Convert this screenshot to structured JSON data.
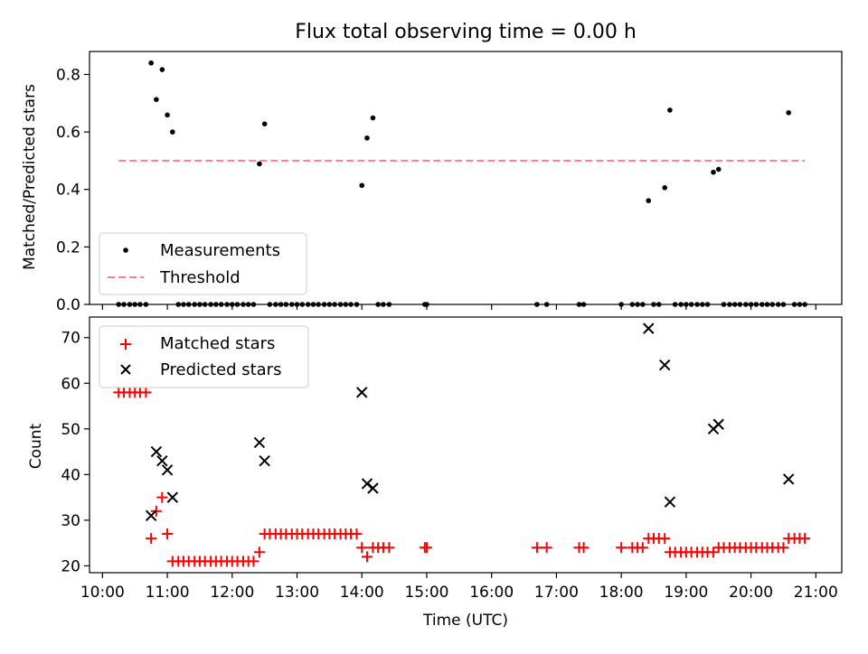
{
  "chart_data": [
    {
      "type": "scatter",
      "title": "Flux total observing time = 0.00 h",
      "ylabel": "Matched/Predicted stars",
      "xlabel": "",
      "xlim": [
        9.8,
        21.4
      ],
      "ylim": [
        0.0,
        0.88
      ],
      "yticks": [
        0.0,
        0.2,
        0.4,
        0.6,
        0.8
      ],
      "ytick_labels": [
        "0.0",
        "0.2",
        "0.4",
        "0.6",
        "0.8"
      ],
      "xticks": [
        10,
        11,
        12,
        13,
        14,
        15,
        16,
        17,
        18,
        19,
        20,
        21
      ],
      "grid": false,
      "legend_location": "lower-left",
      "legend": [
        "Measurements",
        "Threshold"
      ],
      "series": [
        {
          "name": "Measurements",
          "color": "#000000",
          "marker": "dot",
          "x": [
            10.75,
            10.83,
            10.92,
            11.0,
            11.08,
            12.42,
            12.5,
            14.0,
            14.08,
            14.17,
            18.42,
            18.67,
            18.75,
            19.42,
            19.5,
            20.58,
            10.25,
            10.33,
            10.42,
            10.5,
            10.58,
            10.67,
            11.17,
            11.25,
            11.33,
            11.42,
            11.5,
            11.58,
            11.67,
            11.75,
            11.83,
            11.92,
            12.0,
            12.08,
            12.17,
            12.25,
            12.33,
            12.58,
            12.67,
            12.75,
            12.83,
            12.92,
            13.0,
            13.08,
            13.17,
            13.25,
            13.33,
            13.42,
            13.5,
            13.58,
            13.67,
            13.75,
            13.83,
            13.92,
            14.25,
            14.33,
            14.42,
            14.97,
            15.0,
            16.7,
            16.85,
            17.35,
            17.42,
            18.0,
            18.17,
            18.25,
            18.33,
            18.5,
            18.58,
            18.83,
            18.92,
            19.0,
            19.08,
            19.17,
            19.25,
            19.33,
            19.58,
            19.67,
            19.75,
            19.83,
            19.92,
            20.0,
            20.08,
            20.17,
            20.25,
            20.33,
            20.42,
            20.5,
            20.67,
            20.75,
            20.83
          ],
          "y": [
            0.84,
            0.713,
            0.817,
            0.659,
            0.6,
            0.489,
            0.628,
            0.414,
            0.579,
            0.649,
            0.361,
            0.406,
            0.676,
            0.46,
            0.47,
            0.667,
            0,
            0,
            0,
            0,
            0,
            0,
            0,
            0,
            0,
            0,
            0,
            0,
            0,
            0,
            0,
            0,
            0,
            0,
            0,
            0,
            0,
            0,
            0,
            0,
            0,
            0,
            0,
            0,
            0,
            0,
            0,
            0,
            0,
            0,
            0,
            0,
            0,
            0,
            0,
            0,
            0,
            0,
            0,
            0,
            0,
            0,
            0,
            0,
            0,
            0,
            0,
            0,
            0,
            0,
            0,
            0,
            0,
            0,
            0,
            0,
            0,
            0,
            0,
            0,
            0,
            0,
            0,
            0,
            0,
            0,
            0,
            0,
            0,
            0,
            0
          ]
        },
        {
          "name": "Threshold",
          "color": "#ff7f7f",
          "style": "dashed",
          "x": [
            10.25,
            20.83
          ],
          "y": [
            0.5,
            0.5
          ]
        }
      ]
    },
    {
      "type": "scatter",
      "title": "",
      "ylabel": "Count",
      "xlabel": "Time (UTC)",
      "xlim": [
        9.8,
        21.4
      ],
      "ylim": [
        18.5,
        74.5
      ],
      "yticks": [
        20,
        30,
        40,
        50,
        60,
        70
      ],
      "ytick_labels": [
        "20",
        "30",
        "40",
        "50",
        "60",
        "70"
      ],
      "xticks": [
        10,
        11,
        12,
        13,
        14,
        15,
        16,
        17,
        18,
        19,
        20,
        21
      ],
      "xtick_labels": [
        "10:00",
        "11:00",
        "12:00",
        "13:00",
        "14:00",
        "15:00",
        "16:00",
        "17:00",
        "18:00",
        "19:00",
        "20:00",
        "21:00"
      ],
      "grid": false,
      "legend_location": "upper-left",
      "legend": [
        "Matched stars",
        "Predicted stars"
      ],
      "series": [
        {
          "name": "Matched stars",
          "color": "#ff0000",
          "marker": "plus",
          "x": [
            10.25,
            10.33,
            10.42,
            10.5,
            10.58,
            10.67,
            10.75,
            10.83,
            10.92,
            11.0,
            11.08,
            11.17,
            11.25,
            11.33,
            11.42,
            11.5,
            11.58,
            11.67,
            11.75,
            11.83,
            11.92,
            12.0,
            12.08,
            12.17,
            12.25,
            12.33,
            12.42,
            12.5,
            12.58,
            12.67,
            12.75,
            12.83,
            12.92,
            13.0,
            13.08,
            13.17,
            13.25,
            13.33,
            13.42,
            13.5,
            13.58,
            13.67,
            13.75,
            13.83,
            13.92,
            14.0,
            14.08,
            14.17,
            14.25,
            14.33,
            14.42,
            14.97,
            15.0,
            16.7,
            16.85,
            17.35,
            17.42,
            18.0,
            18.17,
            18.25,
            18.33,
            18.42,
            18.5,
            18.58,
            18.67,
            18.75,
            18.83,
            18.92,
            19.0,
            19.08,
            19.17,
            19.25,
            19.33,
            19.42,
            19.5,
            19.58,
            19.67,
            19.75,
            19.83,
            19.92,
            20.0,
            20.08,
            20.17,
            20.25,
            20.33,
            20.42,
            20.5,
            20.58,
            20.67,
            20.75,
            20.83
          ],
          "y": [
            58,
            58,
            58,
            58,
            58,
            58,
            26,
            32,
            35,
            27,
            21,
            21,
            21,
            21,
            21,
            21,
            21,
            21,
            21,
            21,
            21,
            21,
            21,
            21,
            21,
            21,
            23,
            27,
            27,
            27,
            27,
            27,
            27,
            27,
            27,
            27,
            27,
            27,
            27,
            27,
            27,
            27,
            27,
            27,
            27,
            24,
            22,
            24,
            24,
            24,
            24,
            24,
            24,
            24,
            24,
            24,
            24,
            24,
            24,
            24,
            24,
            26,
            26,
            26,
            26,
            23,
            23,
            23,
            23,
            23,
            23,
            23,
            23,
            23,
            24,
            24,
            24,
            24,
            24,
            24,
            24,
            24,
            24,
            24,
            24,
            24,
            24,
            26,
            26,
            26,
            26
          ]
        },
        {
          "name": "Predicted stars",
          "color": "#000000",
          "marker": "x",
          "x": [
            10.75,
            10.83,
            10.92,
            11.0,
            11.08,
            12.42,
            12.5,
            14.0,
            14.08,
            14.17,
            18.42,
            18.67,
            18.75,
            19.42,
            19.5,
            20.58
          ],
          "y": [
            31,
            45,
            43,
            41,
            35,
            47,
            43,
            58,
            38,
            37,
            72,
            64,
            34,
            50,
            51,
            39
          ]
        }
      ]
    }
  ]
}
